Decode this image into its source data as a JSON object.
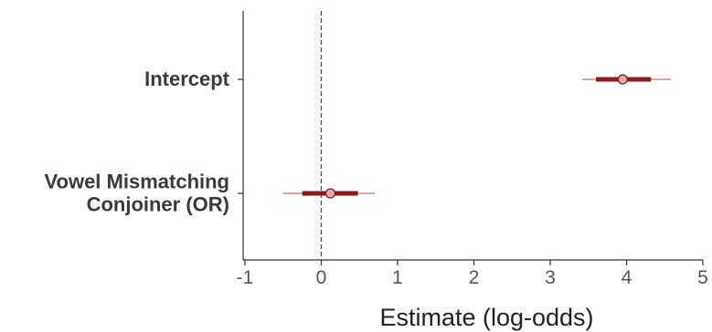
{
  "chart_data": {
    "type": "forest",
    "title": "",
    "xlabel": "Estimate (log-odds)",
    "ylabel": "",
    "xlim": [
      -1,
      5
    ],
    "x_ticks": [
      "-1",
      "0",
      "1",
      "2",
      "3",
      "4",
      "5"
    ],
    "reference_line": {
      "x": 0,
      "style": "dashed",
      "color": "#3b3bd6"
    },
    "grid": false,
    "series_colors": {
      "inner_interval": "#8b1a1a",
      "outer_interval": "#c98a8a",
      "point_fill": "#e3a9a9",
      "point_stroke": "#8b1a1a"
    },
    "terms": [
      {
        "label_lines": [
          "Intercept"
        ],
        "estimate": 3.95,
        "inner_interval": [
          3.6,
          4.32
        ],
        "outer_interval": [
          3.42,
          4.58
        ]
      },
      {
        "label_lines": [
          "Vowel Mismatching",
          "Conjoiner (OR)"
        ],
        "estimate": 0.12,
        "inner_interval": [
          -0.25,
          0.48
        ],
        "outer_interval": [
          -0.5,
          0.7
        ]
      }
    ]
  }
}
